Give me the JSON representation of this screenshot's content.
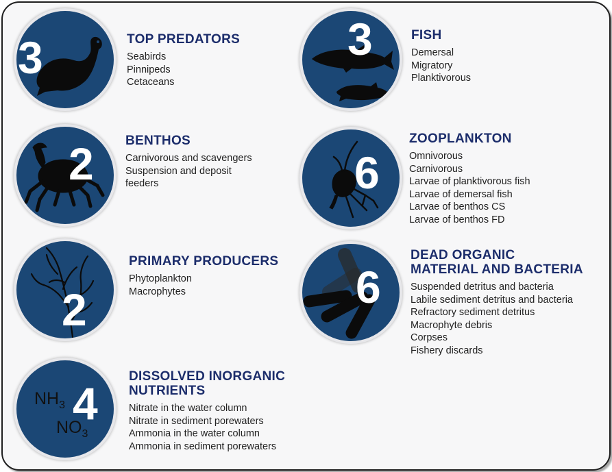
{
  "groups": [
    {
      "id": "top-predators",
      "count": "3",
      "title": "TOP PREDATORS",
      "items": [
        "Seabirds",
        "Pinnipeds",
        "Cetaceans"
      ],
      "icon": "seal-icon"
    },
    {
      "id": "fish",
      "count": "3",
      "title": "FISH",
      "items": [
        "Demersal",
        "Migratory",
        "Planktivorous"
      ],
      "icon": "fish-icon"
    },
    {
      "id": "benthos",
      "count": "2",
      "title": "BENTHOS",
      "items": [
        "Carnivorous and scavengers",
        "Suspension and deposit",
        "feeders"
      ],
      "icon": "crab-icon"
    },
    {
      "id": "zooplankton",
      "count": "6",
      "title": "ZOOPLANKTON",
      "items": [
        "Omnivorous",
        "Carnivorous",
        "Larvae of planktivorous fish",
        "Larvae of demersal fish",
        "Larvae of benthos CS",
        "Larvae of benthos FD"
      ],
      "icon": "copepod-icon"
    },
    {
      "id": "primary-producers",
      "count": "2",
      "title": "PRIMARY PRODUCERS",
      "items": [
        "Phytoplankton",
        "Macrophytes"
      ],
      "icon": "seaweed-icon"
    },
    {
      "id": "dead-organic",
      "count": "6",
      "title": "DEAD ORGANIC\nMATERIAL AND BACTERIA",
      "items": [
        "Suspended detritus and bacteria",
        "Labile sediment detritus and bacteria",
        "Refractory sediment detritus",
        "Macrophyte debris",
        "Corpses",
        "Fishery discards"
      ],
      "icon": "bacteria-icon"
    },
    {
      "id": "nutrients",
      "count": "4",
      "title": "DISSOLVED INORGANIC\nNUTRIENTS",
      "items": [
        "Nitrate in the water column",
        "Nitrate in sediment porewaters",
        "Ammonia in the water column",
        "Ammonia in sediment porewaters"
      ],
      "icon": "chemical-formula-icon",
      "formulas": {
        "nh": "NH",
        "nh_sub": "3",
        "no": "NO",
        "no_sub": "3"
      }
    }
  ],
  "colors": {
    "circle": "#1b4775",
    "title": "#1c2d6b",
    "text": "#222222",
    "silhouette": "#0b0b0b"
  }
}
